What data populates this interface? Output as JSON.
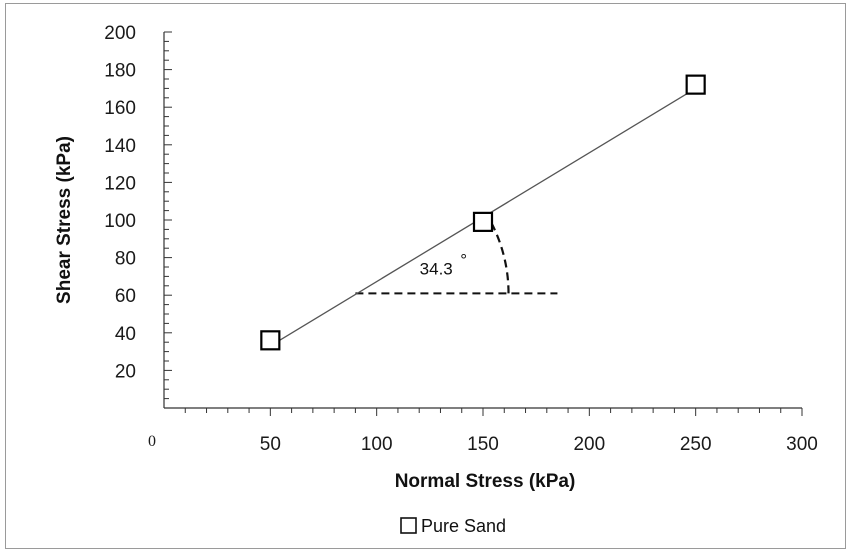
{
  "chart_data": {
    "type": "scatter",
    "title": "",
    "xlabel": "Normal Stress (kPa)",
    "ylabel": "Shear Stress (kPa)",
    "xlim": [
      0,
      300
    ],
    "ylim": [
      0,
      200
    ],
    "x_ticks": [
      "0",
      "50",
      "100",
      "150",
      "200",
      "250",
      "300"
    ],
    "y_ticks": [
      "20",
      "40",
      "60",
      "80",
      "100",
      "120",
      "140",
      "160",
      "180",
      "200"
    ],
    "grid": false,
    "legend_position": "bottom",
    "series": [
      {
        "name": "Pure Sand",
        "marker": "open-square",
        "color": "#000000",
        "x": [
          50,
          150,
          250
        ],
        "y": [
          36,
          99,
          172
        ]
      }
    ],
    "trendline": {
      "color": "#555555",
      "x": [
        50,
        250
      ],
      "y": [
        33,
        170
      ]
    },
    "annotations": {
      "angle_label": "34.3",
      "angle_unit": "°",
      "angle_vertex": [
        90,
        61
      ],
      "angle_reference_end": [
        185,
        61
      ],
      "angle_arc_radius": 72
    }
  }
}
